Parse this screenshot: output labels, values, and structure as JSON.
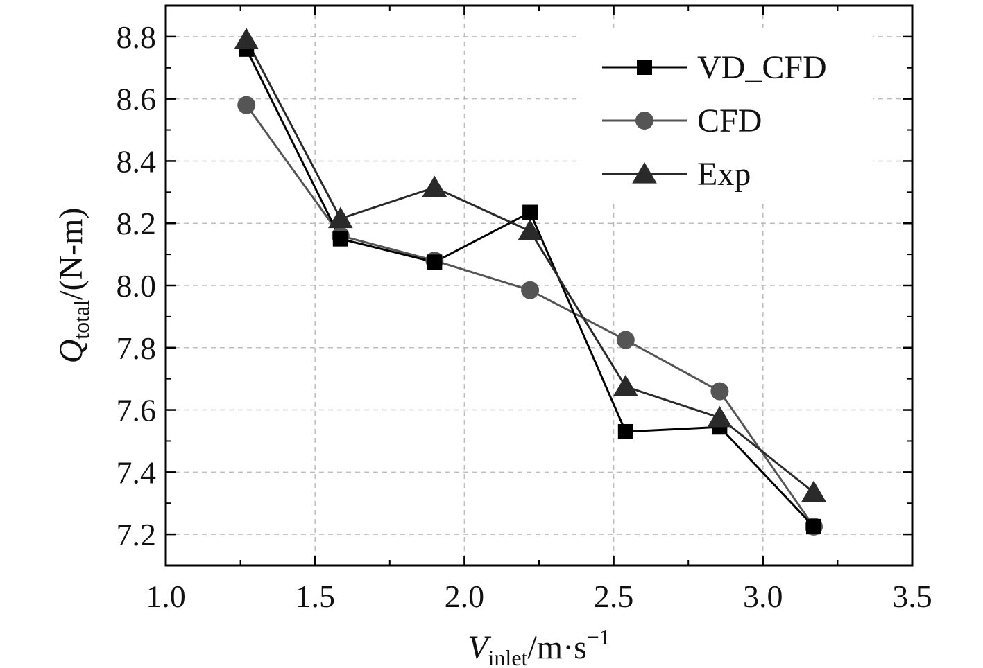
{
  "chart_data": {
    "type": "line",
    "title": "",
    "xlabel": {
      "main": "V",
      "sub": "inlet",
      "unit": "/m·s",
      "sup": "−1"
    },
    "ylabel": {
      "main": "Q",
      "sub": "total",
      "unit": "/(N-m)"
    },
    "xlim": [
      1.0,
      3.5
    ],
    "ylim": [
      7.1,
      8.9
    ],
    "xticks": [
      1.0,
      1.5,
      2.0,
      2.5,
      3.0,
      3.5
    ],
    "xtick_labels": [
      "1.0",
      "1.5",
      "2.0",
      "2.5",
      "3.0",
      "3.5"
    ],
    "yticks": [
      7.2,
      7.4,
      7.6,
      7.8,
      8.0,
      8.2,
      8.4,
      8.6,
      8.8
    ],
    "ytick_labels": [
      "7.2",
      "7.4",
      "7.6",
      "7.8",
      "8.0",
      "8.2",
      "8.4",
      "8.6",
      "8.8"
    ],
    "grid": true,
    "legend_position": "top-right",
    "x": [
      1.27,
      1.585,
      1.9,
      2.22,
      2.54,
      2.855,
      3.17
    ],
    "series": [
      {
        "name": "VD_CFD",
        "marker": "square",
        "color": "#000000",
        "values": [
          8.76,
          8.15,
          8.075,
          8.235,
          7.53,
          7.545,
          7.225
        ]
      },
      {
        "name": "CFD",
        "marker": "circle",
        "color": "#555555",
        "values": [
          8.58,
          8.16,
          8.08,
          7.985,
          7.825,
          7.66,
          7.225
        ]
      },
      {
        "name": "Exp",
        "marker": "triangle",
        "color": "#2a2a2a",
        "values": [
          8.79,
          8.215,
          8.315,
          8.175,
          7.675,
          7.575,
          7.335
        ]
      }
    ]
  }
}
